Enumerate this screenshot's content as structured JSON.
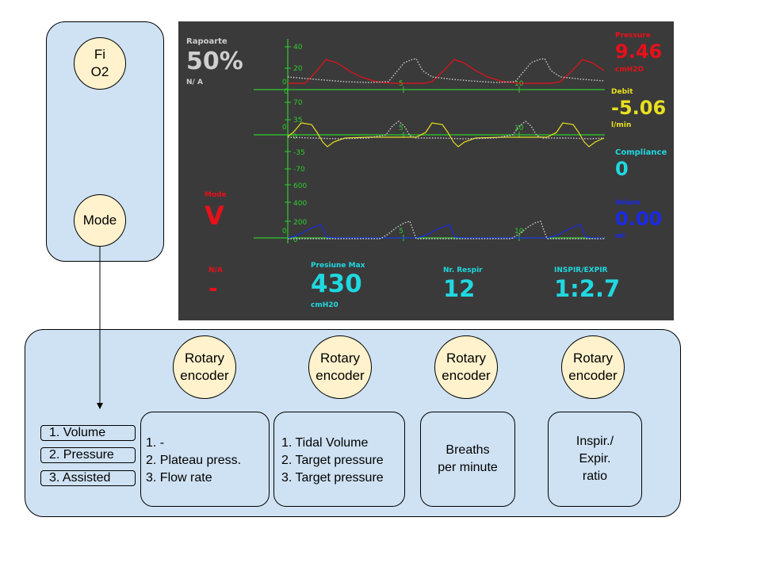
{
  "left_panel": {
    "fio2_label": "Fi\nO2",
    "mode_label": "Mode"
  },
  "bottom_panel": {
    "encoders": [
      {
        "label": "Rotary\nencoder"
      },
      {
        "label": "Rotary\nencoder"
      },
      {
        "label": "Rotary\nencoder"
      },
      {
        "label": "Rotary\nencoder"
      }
    ],
    "mode_options": [
      "1. Volume",
      "2. Pressure",
      "3. Assisted"
    ],
    "box1_lines": [
      "1. -",
      "2. Plateau press.",
      "3. Flow rate"
    ],
    "box2_lines": [
      "1. Tidal Volume",
      "2. Target pressure",
      "3. Target pressure"
    ],
    "box3_text": "Breaths\nper minute",
    "box4_text": "Inspir./\nExpir.\nratio"
  },
  "screen": {
    "rapoarte_label": "Rapoarte",
    "rapoarte_value": "50%",
    "rapoarte_sub": "N/ A",
    "mode_label": "Mode",
    "mode_value": "V",
    "na_label": "N/A",
    "na_value": "-",
    "presiune_label": "Presiune Max",
    "presiune_value": "430",
    "presiune_unit": "cmH20",
    "nr_label": "Nr. Respir",
    "nr_value": "12",
    "ie_label": "INSPIR/EXPIR",
    "ie_value": "1:2.7",
    "pressure_label": "Pressure",
    "pressure_value": "9.46",
    "pressure_unit": "cmH2O",
    "debit_label": "Debit",
    "debit_value": "-5.06",
    "debit_unit": "l/min",
    "compliance_label": "Compliance",
    "compliance_value": "0",
    "volum_label": "Volum",
    "volum_value": "0.00",
    "volum_unit": "ml",
    "colors": {
      "background": "#3a3a3a",
      "axis": "#2ecc2e",
      "pressure": "#e8101a",
      "debit": "#e8e020",
      "compliance": "#20d8e0",
      "volum": "#1a2ae8",
      "label_gray": "#cfcfcf",
      "trace_gray": "#d0d0d0"
    },
    "graph1_ticks": [
      "40",
      "20",
      "0",
      "0"
    ],
    "graph2_ticks": [
      "70",
      "35",
      "0",
      "0",
      "-35",
      "-70"
    ],
    "graph3_ticks": [
      "600",
      "400",
      "200",
      "0",
      "0"
    ],
    "time_ticks": [
      "5",
      "10"
    ]
  }
}
